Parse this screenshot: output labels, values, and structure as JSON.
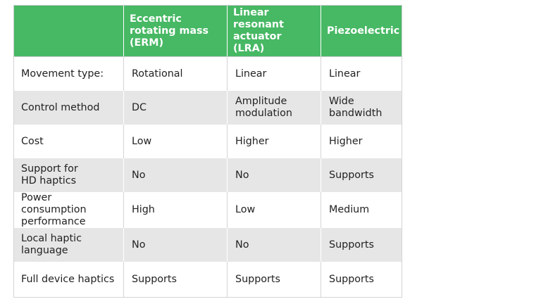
{
  "table": {
    "header": [
      "",
      "Eccentric rotating mass (ERM)",
      "Linear resonant actuator (LRA)",
      "Piezoelectric"
    ],
    "rows": [
      [
        "Movement type:",
        "Rotational",
        "Linear",
        "Linear"
      ],
      [
        "Control method",
        "DC",
        "Amplitude\nmodulation",
        "Wide\nbandwidth"
      ],
      [
        "Cost",
        "Low",
        "Higher",
        "Higher"
      ],
      [
        "Support for\nHD haptics",
        "No",
        "No",
        "Supports"
      ],
      [
        "Power consumption\nperformance",
        "High",
        "Low",
        "Medium"
      ],
      [
        "Local haptic\nlanguage",
        "No",
        "No",
        "Supports"
      ],
      [
        "Full device haptics",
        "Supports",
        "Supports",
        "Supports"
      ]
    ]
  },
  "colors": {
    "header_bg": "#47b864",
    "header_text": "#ffffff",
    "row_alt_bg": "#e6e6e6",
    "row_bg": "#ffffff",
    "border": "#d4d4d4"
  }
}
